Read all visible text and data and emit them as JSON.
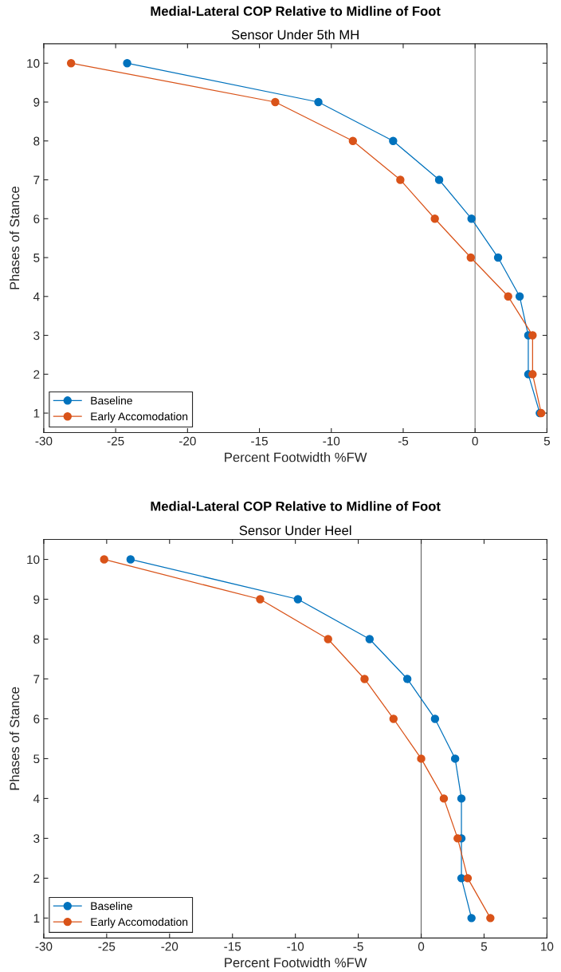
{
  "chart_data": [
    {
      "type": "line",
      "title": "Medial-Lateral COP Relative to Midline of Foot",
      "subtitle": "Sensor Under 5th MH",
      "xlabel": "Percent Footwidth %FW",
      "ylabel": "Phases of Stance",
      "xlim": [
        -30,
        5
      ],
      "xticks": [
        -30,
        -25,
        -20,
        -15,
        -10,
        -5,
        0,
        5
      ],
      "ylim": [
        0.5,
        10.5
      ],
      "yticks": [
        1,
        2,
        3,
        4,
        5,
        6,
        7,
        8,
        9,
        10
      ],
      "series": [
        {
          "name": "Baseline",
          "color": "#0072bd",
          "x": [
            4.5,
            3.7,
            3.7,
            3.1,
            1.6,
            -0.25,
            -2.5,
            -5.7,
            -10.9,
            -24.2
          ],
          "values": [
            1,
            2,
            3,
            4,
            5,
            6,
            7,
            8,
            9,
            10
          ]
        },
        {
          "name": "Early Accomodation",
          "color": "#d95319",
          "x": [
            4.6,
            4.0,
            4.0,
            2.3,
            -0.3,
            -2.8,
            -5.2,
            -8.5,
            -13.9,
            -28.1
          ],
          "values": [
            1,
            2,
            3,
            4,
            5,
            6,
            7,
            8,
            9,
            10
          ]
        }
      ],
      "ref_lines": [
        {
          "axis": "x",
          "value": 0,
          "color": "#8c8c8c"
        }
      ],
      "marker": "circle",
      "line_style": "solid",
      "legend": "bottom left",
      "grid": false
    },
    {
      "type": "line",
      "title": "Medial-Lateral COP Relative to Midline of Foot",
      "subtitle": "Sensor Under Heel",
      "xlabel": "Percent Footwidth %FW",
      "ylabel": "Phases of Stance",
      "xlim": [
        -30,
        10
      ],
      "xticks": [
        -30,
        -25,
        -20,
        -15,
        -10,
        -5,
        0,
        5,
        10
      ],
      "ylim": [
        0.5,
        10.5
      ],
      "yticks": [
        1,
        2,
        3,
        4,
        5,
        6,
        7,
        8,
        9,
        10
      ],
      "series": [
        {
          "name": "Baseline",
          "color": "#0072bd",
          "x": [
            4.0,
            3.2,
            3.2,
            3.2,
            2.7,
            1.1,
            -1.1,
            -4.1,
            -9.8,
            -23.1
          ],
          "values": [
            1,
            2,
            3,
            4,
            5,
            6,
            7,
            8,
            9,
            10
          ]
        },
        {
          "name": "Early Accomodation",
          "color": "#d95319",
          "x": [
            5.5,
            3.7,
            2.9,
            1.8,
            0,
            -2.2,
            -4.5,
            -7.4,
            -12.8,
            -25.2
          ],
          "values": [
            1,
            2,
            3,
            4,
            5,
            6,
            7,
            8,
            9,
            10
          ]
        }
      ],
      "ref_lines": [
        {
          "axis": "x",
          "value": 0,
          "color": "#6e6e6e"
        }
      ],
      "marker": "circle",
      "line_style": "solid",
      "legend": "bottom left",
      "grid": false
    }
  ]
}
